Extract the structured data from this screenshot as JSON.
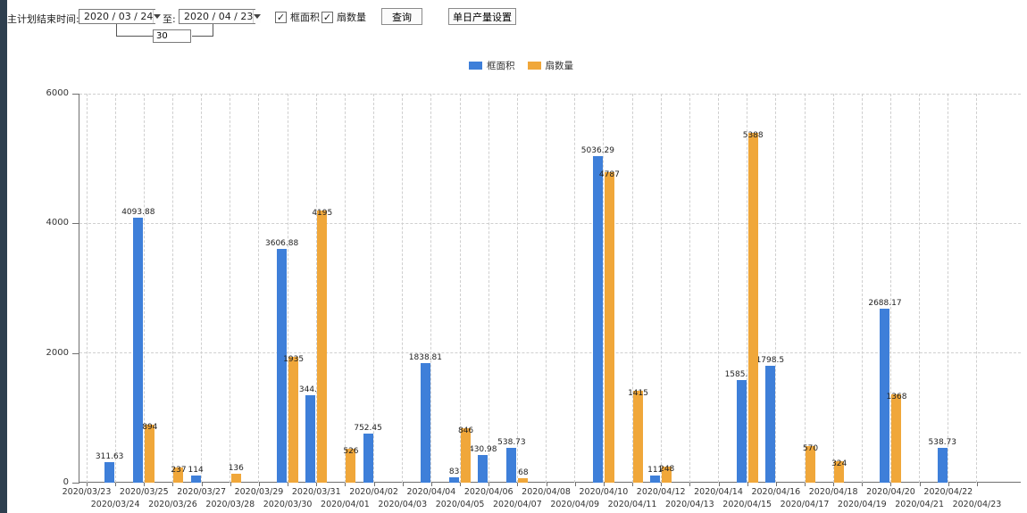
{
  "toolbar": {
    "plan_end_label": "主计划结束时间:",
    "date_from": "2020 / 03 / 24",
    "to_label": "至:",
    "date_to": "2020 / 04 / 23",
    "days_value": "30",
    "checkbox_area_label": "框面积",
    "checkbox_sash_label": "扇数量",
    "checkbox_area_checked": "✓",
    "checkbox_sash_checked": "✓",
    "query_button": "查询",
    "daily_output_button": "单日产量设置"
  },
  "legend": [
    {
      "label": "框面积",
      "color": "#3e7fd9"
    },
    {
      "label": "扇数量",
      "color": "#f0a73a"
    }
  ],
  "chart_data": {
    "type": "bar",
    "title": "",
    "xlabel": "",
    "ylabel": "",
    "ylim": [
      0,
      6000
    ],
    "yticks": [
      0,
      2000,
      4000,
      6000
    ],
    "grid": "dashed",
    "legend_position": "top-center",
    "bar_labels_visible": true,
    "categories": [
      "2020/03/23",
      "2020/03/24",
      "2020/03/25",
      "2020/03/26",
      "2020/03/27",
      "2020/03/28",
      "2020/03/29",
      "2020/03/30",
      "2020/03/31",
      "2020/04/01",
      "2020/04/02",
      "2020/04/03",
      "2020/04/04",
      "2020/04/05",
      "2020/04/06",
      "2020/04/07",
      "2020/04/08",
      "2020/04/09",
      "2020/04/10",
      "2020/04/11",
      "2020/04/12",
      "2020/04/13",
      "2020/04/14",
      "2020/04/15",
      "2020/04/16",
      "2020/04/17",
      "2020/04/18",
      "2020/04/19",
      "2020/04/20",
      "2020/04/21",
      "2020/04/22",
      "2020/04/23"
    ],
    "series": [
      {
        "name": "框面积",
        "color": "#3e7fd9",
        "values": [
          0,
          311.63,
          4093.88,
          0,
          114,
          0,
          0,
          3606.88,
          1344.95,
          0,
          752.45,
          0,
          1838.81,
          83,
          430.98,
          538.73,
          0,
          0,
          5036.29,
          0,
          111,
          0,
          0,
          1585.96,
          1798.5,
          0,
          0,
          0,
          2688.17,
          0,
          538.73,
          0
        ]
      },
      {
        "name": "扇数量",
        "color": "#f0a73a",
        "values": [
          0,
          0,
          894,
          237,
          0,
          136,
          0,
          1935,
          4195,
          526,
          0,
          0,
          0,
          846,
          0,
          68,
          0,
          0,
          4787,
          1415,
          248,
          0,
          0,
          5388,
          0,
          570,
          324,
          0,
          1368,
          0,
          0,
          0
        ]
      }
    ]
  }
}
